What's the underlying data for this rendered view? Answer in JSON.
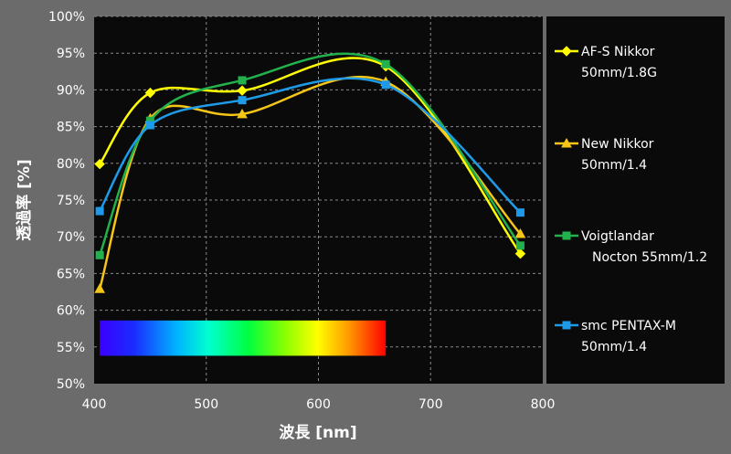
{
  "chart_data": {
    "type": "line",
    "xlabel": "波長 [nm]",
    "ylabel": "透過率 [%]",
    "xlim": [
      400,
      800
    ],
    "ylim": [
      50,
      100
    ],
    "x_ticks": [
      "400",
      "500",
      "600",
      "700",
      "800"
    ],
    "y_ticks": [
      "50%",
      "55%",
      "60%",
      "65%",
      "70%",
      "75%",
      "80%",
      "85%",
      "90%",
      "95%",
      "100%"
    ],
    "grid": "dashed",
    "legend_position": "right",
    "spectrum_band": {
      "x_range": [
        405,
        660
      ],
      "y_range": [
        53.8,
        58.6
      ]
    },
    "series": [
      {
        "name_lines": [
          "AF-S Nikkor",
          "50mm/1.8G"
        ],
        "color": "#ffff00",
        "marker": "diamond",
        "x": [
          405,
          450,
          532,
          660,
          780
        ],
        "y": [
          79.9,
          89.6,
          89.9,
          93.2,
          67.7
        ]
      },
      {
        "name_lines": [
          "New Nikkor",
          "50mm/1.4"
        ],
        "color": "#f5c518",
        "marker": "triangle",
        "x": [
          405,
          450,
          532,
          660,
          780
        ],
        "y": [
          62.9,
          86.1,
          86.7,
          91.1,
          70.4
        ]
      },
      {
        "name_lines": [
          "Voigtlandar",
          "Nocton 55mm/1.2"
        ],
        "color": "#22b14c",
        "marker": "square",
        "x": [
          405,
          450,
          532,
          660,
          780
        ],
        "y": [
          67.5,
          85.8,
          91.3,
          93.5,
          68.8
        ]
      },
      {
        "name_lines": [
          "smc PENTAX-M",
          "50mm/1.4"
        ],
        "color": "#1e9be8",
        "marker": "square",
        "x": [
          405,
          450,
          532,
          660,
          780
        ],
        "y": [
          73.5,
          85.2,
          88.6,
          90.7,
          73.3
        ]
      }
    ]
  }
}
